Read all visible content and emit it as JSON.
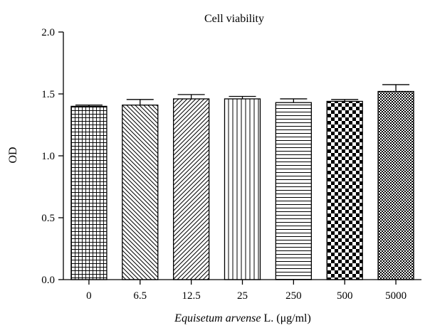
{
  "chart_data": {
    "type": "bar",
    "title": "Cell viability",
    "ylabel": "OD",
    "xlabel": "Equisetum arvense L. (μg/ml)",
    "xlabel_italic_part": "Equisetum arvense",
    "xlabel_rest": " L. (μg/ml)",
    "categories": [
      "0",
      "6.5",
      "12.5",
      "25",
      "250",
      "500",
      "5000"
    ],
    "values": [
      1.4,
      1.41,
      1.46,
      1.46,
      1.43,
      1.44,
      1.52
    ],
    "errors": [
      0.01,
      0.045,
      0.035,
      0.02,
      0.03,
      0.015,
      0.055
    ],
    "fill_patterns": [
      "grid",
      "diag-back",
      "diag-fwd",
      "vertical",
      "horizontal",
      "checker",
      "fine-checker"
    ],
    "yticks": [
      "0.0",
      "0.5",
      "1.0",
      "1.5",
      "2.0"
    ],
    "ytick_values": [
      0,
      0.5,
      1.0,
      1.5,
      2.0
    ],
    "ylim": [
      0,
      2.0
    ],
    "grid": false,
    "colors": {
      "axis": "#000000",
      "pattern": "#000000",
      "background": "#ffffff"
    }
  }
}
